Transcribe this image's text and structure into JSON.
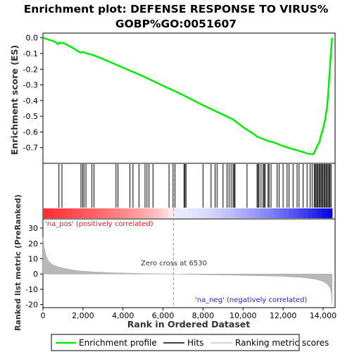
{
  "chart_data": {
    "type": "line",
    "title_line1": "Enrichment plot: DEFENSE RESPONSE TO VIRUS%",
    "title_line2": "GOBP%GO:0051607",
    "es_panel": {
      "ylabel": "Enrichment score (ES)",
      "ylim": [
        -0.8,
        0.03
      ],
      "yticks": [
        0.0,
        -0.1,
        -0.2,
        -0.3,
        -0.4,
        -0.5,
        -0.6,
        -0.7
      ],
      "ytick_labels": [
        "0.0",
        "-0.1",
        "-0.2",
        "-0.3",
        "-0.4",
        "-0.5",
        "-0.6",
        "-0.7"
      ],
      "series_name": "Enrichment profile",
      "color": "#00ee00",
      "x": [
        0,
        300,
        600,
        750,
        820,
        900,
        1000,
        1200,
        1500,
        1800,
        1900,
        2000,
        2100,
        2200,
        2500,
        3000,
        4000,
        5000,
        6000,
        7000,
        8000,
        9000,
        9500,
        10000,
        10500,
        10700,
        11000,
        11300,
        11500,
        12000,
        12500,
        12800,
        13000,
        13200,
        13500,
        13600,
        13700,
        13800,
        13900,
        14000,
        14100,
        14200,
        14250,
        14300,
        14350,
        14400,
        14450
      ],
      "y": [
        0.0,
        -0.012,
        -0.025,
        -0.04,
        -0.03,
        -0.035,
        -0.032,
        -0.045,
        -0.065,
        -0.09,
        -0.095,
        -0.09,
        -0.095,
        -0.1,
        -0.11,
        -0.135,
        -0.19,
        -0.245,
        -0.305,
        -0.365,
        -0.43,
        -0.49,
        -0.52,
        -0.57,
        -0.61,
        -0.63,
        -0.645,
        -0.66,
        -0.665,
        -0.69,
        -0.71,
        -0.72,
        -0.728,
        -0.737,
        -0.743,
        -0.72,
        -0.69,
        -0.67,
        -0.62,
        -0.58,
        -0.52,
        -0.44,
        -0.36,
        -0.27,
        -0.17,
        -0.08,
        0.0
      ]
    },
    "hits": {
      "series_name": "Hits",
      "positions": [
        800,
        950,
        1900,
        1980,
        2050,
        2150,
        2450,
        2550,
        3650,
        3750,
        4350,
        4500,
        4800,
        5100,
        5200,
        5300,
        5500,
        6300,
        6500,
        6600,
        7050,
        7100,
        7150,
        8000,
        8400,
        8600,
        8700,
        9000,
        9200,
        9300,
        9400,
        9500,
        9550,
        9600,
        10200,
        10700,
        10750,
        10800,
        10900,
        11000,
        11050,
        11100,
        11250,
        11300,
        11400,
        11700,
        11800,
        12000,
        12200,
        12300,
        12500,
        12700,
        12800,
        13000,
        13200,
        13350,
        13450,
        13550,
        13600,
        13650,
        13700,
        13750,
        13800,
        13850,
        13900,
        13950,
        14000,
        14050,
        14100,
        14150,
        14200,
        14250,
        14300,
        14350,
        14400
      ]
    },
    "rank_panel": {
      "ylabel": "Ranked list metric (PreRanked)",
      "xlabel": "Rank in Ordered Dataset",
      "ylim": [
        -22,
        36
      ],
      "yticks": [
        30,
        20,
        10,
        0,
        -10,
        -20
      ],
      "ytick_labels": [
        "30",
        "20",
        "10",
        "0",
        "-10",
        "-20"
      ],
      "xlim": [
        0,
        14600
      ],
      "xticks": [
        0,
        2000,
        4000,
        6000,
        8000,
        10000,
        12000,
        14000
      ],
      "xtick_labels": [
        "0",
        "2,000",
        "4,000",
        "6,000",
        "8,000",
        "10,000",
        "12,000",
        "14,000"
      ],
      "series_name": "Ranking metric scores",
      "x": [
        0,
        50,
        150,
        300,
        500,
        800,
        1200,
        1700,
        2500,
        3500,
        5000,
        6530,
        8000,
        10000,
        12000,
        13000,
        13600,
        14000,
        14200,
        14350,
        14420,
        14450
      ],
      "y": [
        24,
        18,
        12,
        8,
        6,
        4.5,
        3.3,
        2.2,
        1.4,
        0.8,
        0.3,
        0.0,
        -0.4,
        -0.9,
        -1.5,
        -2.3,
        -3.3,
        -4.8,
        -6.5,
        -9,
        -13,
        -20
      ],
      "pos_label": "'na_pos' (positively correlated)",
      "neg_label": "'na_neg' (negatively correlated)",
      "zero_cross_label": "Zero cross at 6530",
      "zero_cross": 6530
    },
    "legend": {
      "placement": "bottom",
      "entries": [
        "Enrichment profile",
        "Hits",
        "Ranking metric scores"
      ]
    },
    "colors": {
      "profile": "#00ee00",
      "pos": "#ff0000",
      "neg": "#0000ff",
      "pos_text": "#dd2222",
      "neg_text": "#2222cc",
      "metric_fill": "#b8b8b8"
    }
  }
}
